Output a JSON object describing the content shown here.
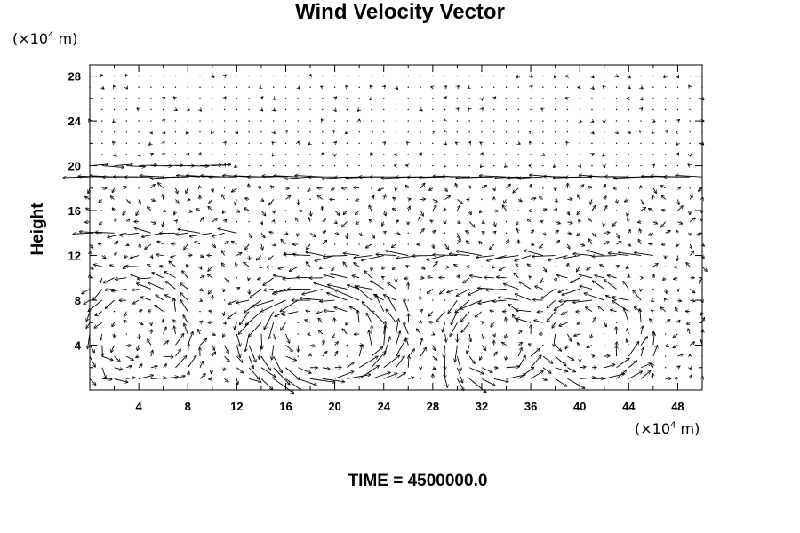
{
  "chart_data": {
    "type": "quiver",
    "title": "Wind Velocity Vector",
    "ylabel": "Height",
    "x_unit": {
      "prefix": "(×10",
      "exp": "4",
      "suffix": " m)"
    },
    "y_unit": {
      "prefix": "(×10",
      "exp": "4",
      "suffix": " m)"
    },
    "xlim": [
      0,
      50
    ],
    "ylim": [
      0,
      29
    ],
    "x_ticks": [
      4,
      8,
      12,
      16,
      20,
      24,
      28,
      32,
      36,
      40,
      44,
      48
    ],
    "y_ticks": [
      4,
      8,
      12,
      16,
      20,
      24,
      28
    ],
    "grid": false,
    "grid_spacing": {
      "dx": 1,
      "dy": 1
    },
    "circulation_cells": [
      {
        "center": [
          19,
          4.5
        ],
        "radius": [
          6,
          4.5
        ],
        "strength": 1.0
      },
      {
        "center": [
          33,
          4.5
        ],
        "radius": [
          3.5,
          4.5
        ],
        "strength": 0.8
      },
      {
        "center": [
          41,
          4.5
        ],
        "radius": [
          4,
          4.5
        ],
        "strength": 0.8
      },
      {
        "center": [
          4,
          5
        ],
        "radius": [
          4,
          5
        ],
        "strength": 0.6
      }
    ],
    "jets": [
      {
        "y": 19,
        "x_range": [
          0,
          50
        ],
        "u": -1.0
      },
      {
        "y": 20,
        "x_range": [
          0,
          10
        ],
        "u": 0.8
      },
      {
        "y": 12,
        "x_range": [
          18,
          46
        ],
        "u": -0.8
      },
      {
        "y": 14,
        "x_range": [
          0,
          12
        ],
        "u": -0.7
      }
    ],
    "time_label": "TIME = 4500000.0"
  }
}
